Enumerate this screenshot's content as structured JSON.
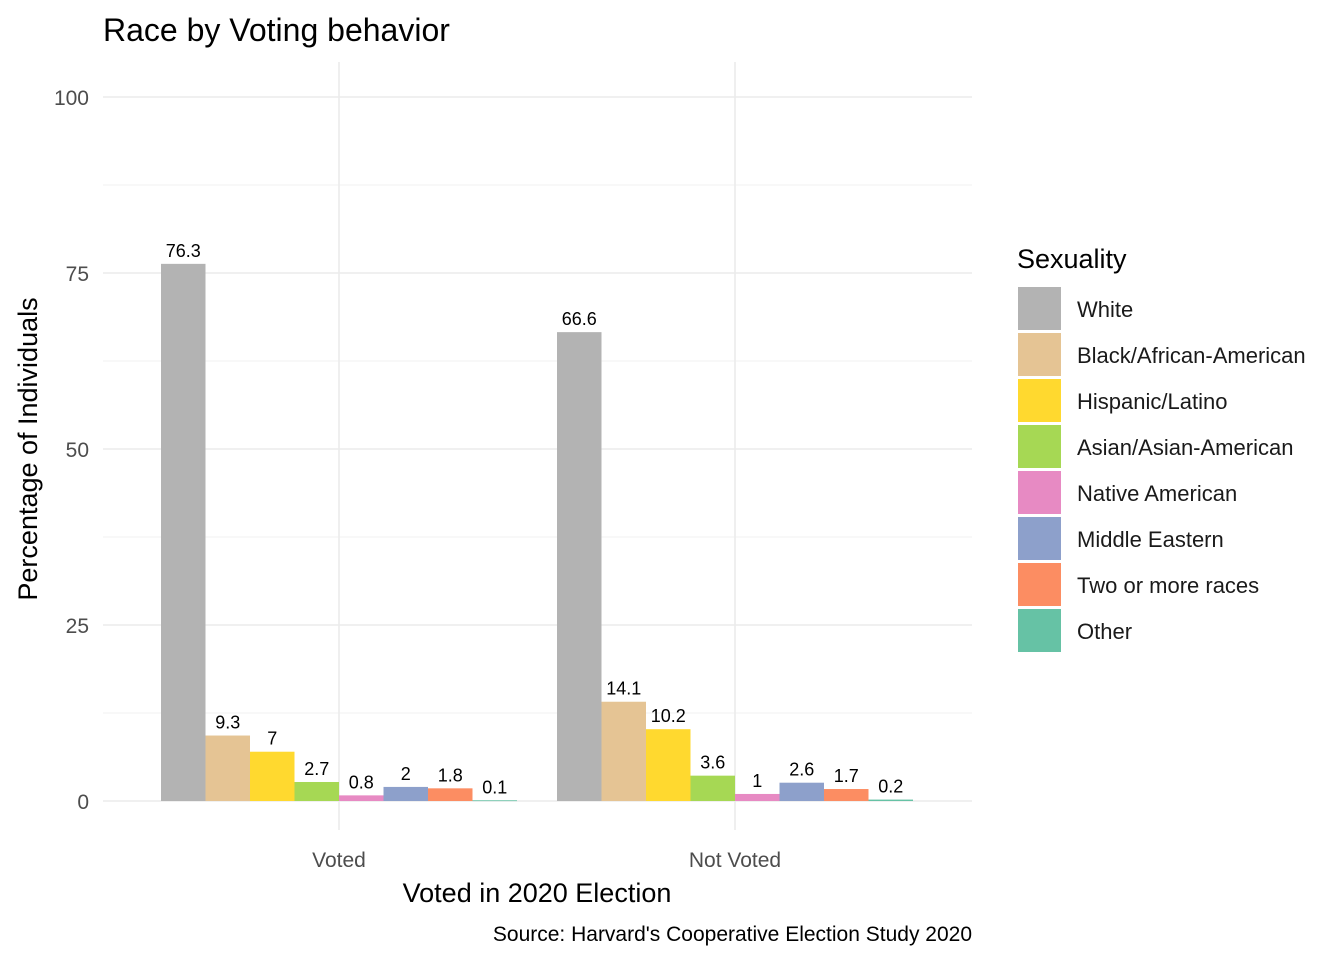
{
  "chart_data": {
    "type": "bar",
    "title": "Race by Voting behavior",
    "xlabel": "Voted in 2020 Election",
    "ylabel": "Percentage of Individuals",
    "caption": "Source: Harvard's Cooperative Election Study 2020",
    "categories": [
      "Voted",
      "Not Voted"
    ],
    "ylim": [
      0,
      100
    ],
    "yticks": [
      0,
      25,
      50,
      75,
      100
    ],
    "grid": true,
    "legend": {
      "title": "Sexuality",
      "position": "right"
    },
    "series": [
      {
        "name": "White",
        "color": "#b3b3b3",
        "values": [
          76.3,
          66.6
        ],
        "labels": [
          "76.3",
          "66.6"
        ]
      },
      {
        "name": "Black/African-American",
        "color": "#e5c494",
        "values": [
          9.3,
          14.1
        ],
        "labels": [
          "9.3",
          "14.1"
        ]
      },
      {
        "name": "Hispanic/Latino",
        "color": "#ffd92f",
        "values": [
          7,
          10.2
        ],
        "labels": [
          "7",
          "10.2"
        ]
      },
      {
        "name": "Asian/Asian-American",
        "color": "#a6d854",
        "values": [
          2.7,
          3.6
        ],
        "labels": [
          "2.7",
          "3.6"
        ]
      },
      {
        "name": "Native American",
        "color": "#e78ac3",
        "values": [
          0.8,
          1
        ],
        "labels": [
          "0.8",
          "1"
        ]
      },
      {
        "name": "Middle Eastern",
        "color": "#8da0cb",
        "values": [
          2,
          2.6
        ],
        "labels": [
          "2",
          "2.6"
        ]
      },
      {
        "name": "Two or more races",
        "color": "#fc8d62",
        "values": [
          1.8,
          1.7
        ],
        "labels": [
          "1.8",
          "1.7"
        ]
      },
      {
        "name": "Other",
        "color": "#66c2a5",
        "values": [
          0.1,
          0.2
        ],
        "labels": [
          "0.1",
          "0.2"
        ]
      }
    ]
  }
}
